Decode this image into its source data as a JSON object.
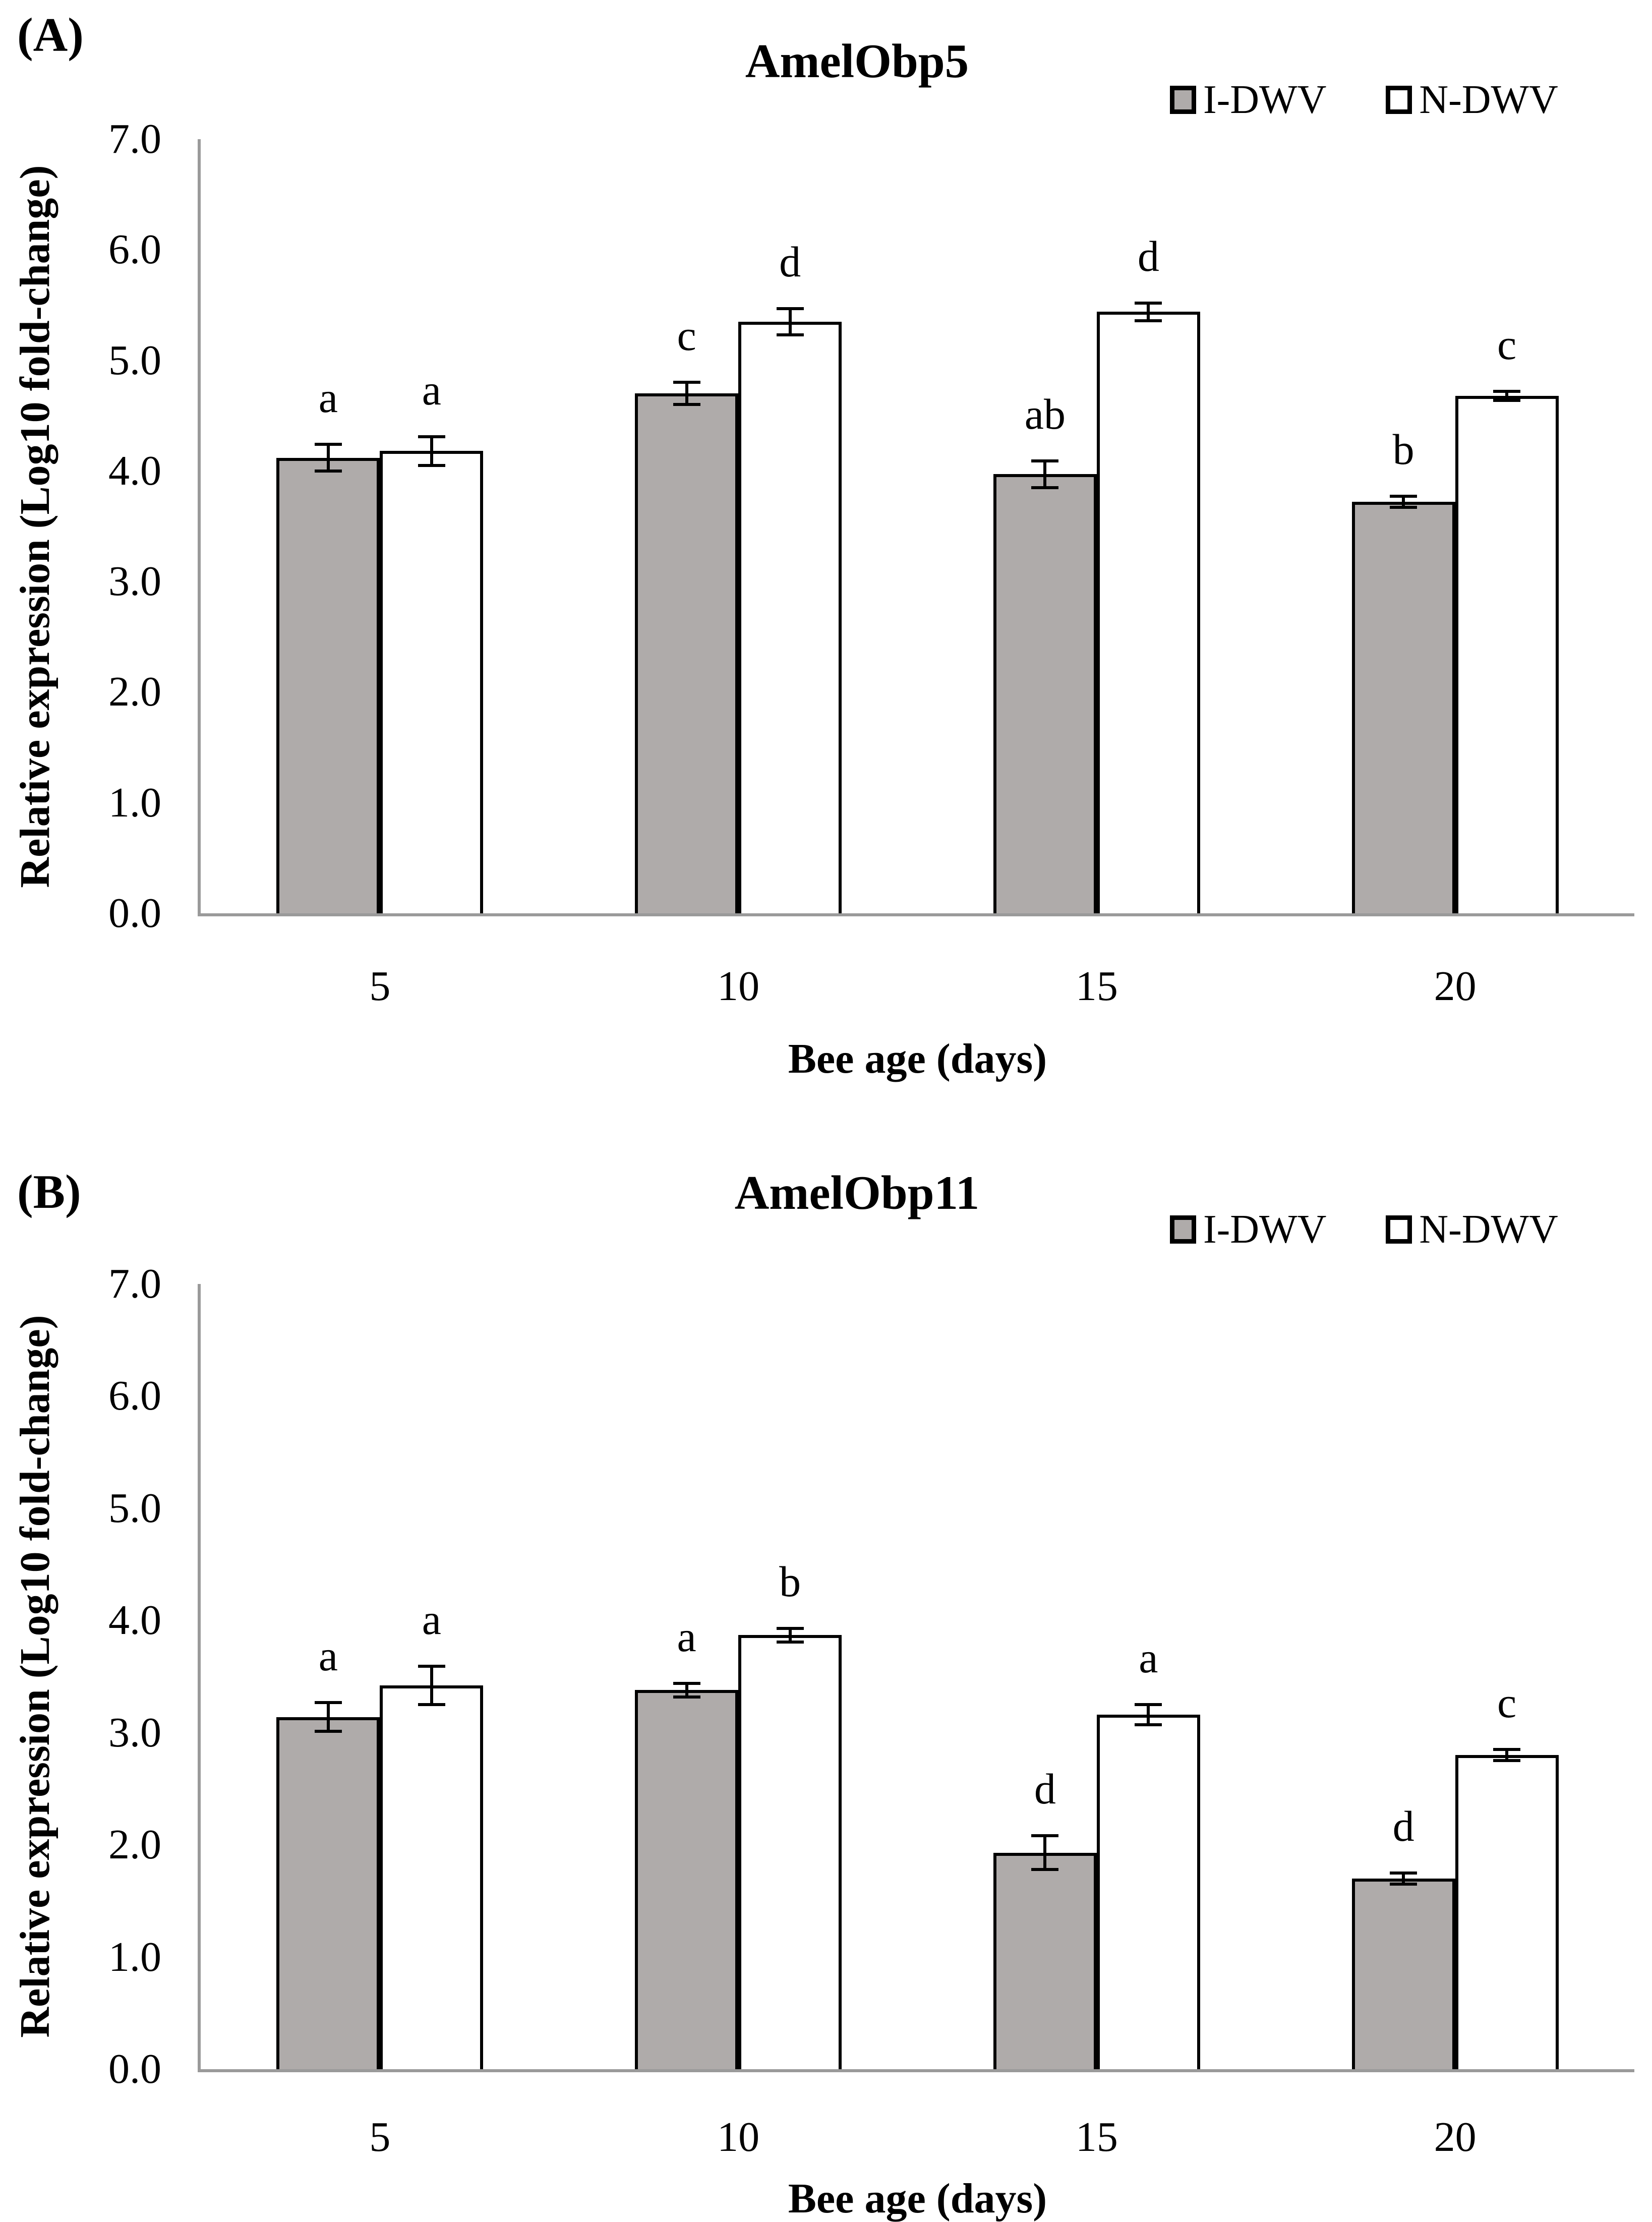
{
  "figure": {
    "background": "#ffffff",
    "colors": {
      "bar_gray": "#afabaa",
      "bar_white": "#ffffff",
      "bar_border": "#000000",
      "axis_line": "#9a9a9a",
      "text": "#000000"
    }
  },
  "chart_data": [
    {
      "type": "bar",
      "panel_label": "(A)",
      "title": "AmelObp5",
      "xlabel": "Bee age (days)",
      "ylabel": "Relative expression (Log10 fold-change)",
      "categories": [
        "5",
        "10",
        "15",
        "20"
      ],
      "series": [
        {
          "name": "I-DWV",
          "fill": "#afabaa",
          "values": [
            4.12,
            4.7,
            3.97,
            3.72
          ],
          "errors": [
            0.12,
            0.1,
            0.12,
            0.05
          ],
          "letters": [
            "a",
            "c",
            "ab",
            "b"
          ]
        },
        {
          "name": "N-DWV",
          "fill": "#ffffff",
          "values": [
            4.18,
            5.35,
            5.44,
            4.68
          ],
          "errors": [
            0.13,
            0.12,
            0.08,
            0.04
          ],
          "letters": [
            "a",
            "d",
            "d",
            "c"
          ]
        }
      ],
      "ylim": [
        0,
        7
      ],
      "ytick_step": 1.0,
      "ytick_labels": [
        "0.0",
        "1.0",
        "2.0",
        "3.0",
        "4.0",
        "5.0",
        "6.0",
        "7.0"
      ],
      "grid": false,
      "legend_position": "top-right",
      "error_bars": true
    },
    {
      "type": "bar",
      "panel_label": "(B)",
      "title": "AmelObp11",
      "xlabel": "Bee age (days)",
      "ylabel": "Relative expression (Log10 fold-change)",
      "categories": [
        "5",
        "10",
        "15",
        "20"
      ],
      "series": [
        {
          "name": "I-DWV",
          "fill": "#afabaa",
          "values": [
            3.14,
            3.38,
            1.93,
            1.7
          ],
          "errors": [
            0.13,
            0.06,
            0.15,
            0.05
          ],
          "letters": [
            "a",
            "a",
            "d",
            "d"
          ]
        },
        {
          "name": "N-DWV",
          "fill": "#ffffff",
          "values": [
            3.42,
            3.87,
            3.16,
            2.8
          ],
          "errors": [
            0.17,
            0.06,
            0.09,
            0.05
          ],
          "letters": [
            "a",
            "b",
            "a",
            "c"
          ]
        }
      ],
      "ylim": [
        0,
        7
      ],
      "ytick_step": 1.0,
      "ytick_labels": [
        "0.0",
        "1.0",
        "2.0",
        "3.0",
        "4.0",
        "5.0",
        "6.0",
        "7.0"
      ],
      "grid": false,
      "legend_position": "top-right",
      "error_bars": true
    }
  ]
}
